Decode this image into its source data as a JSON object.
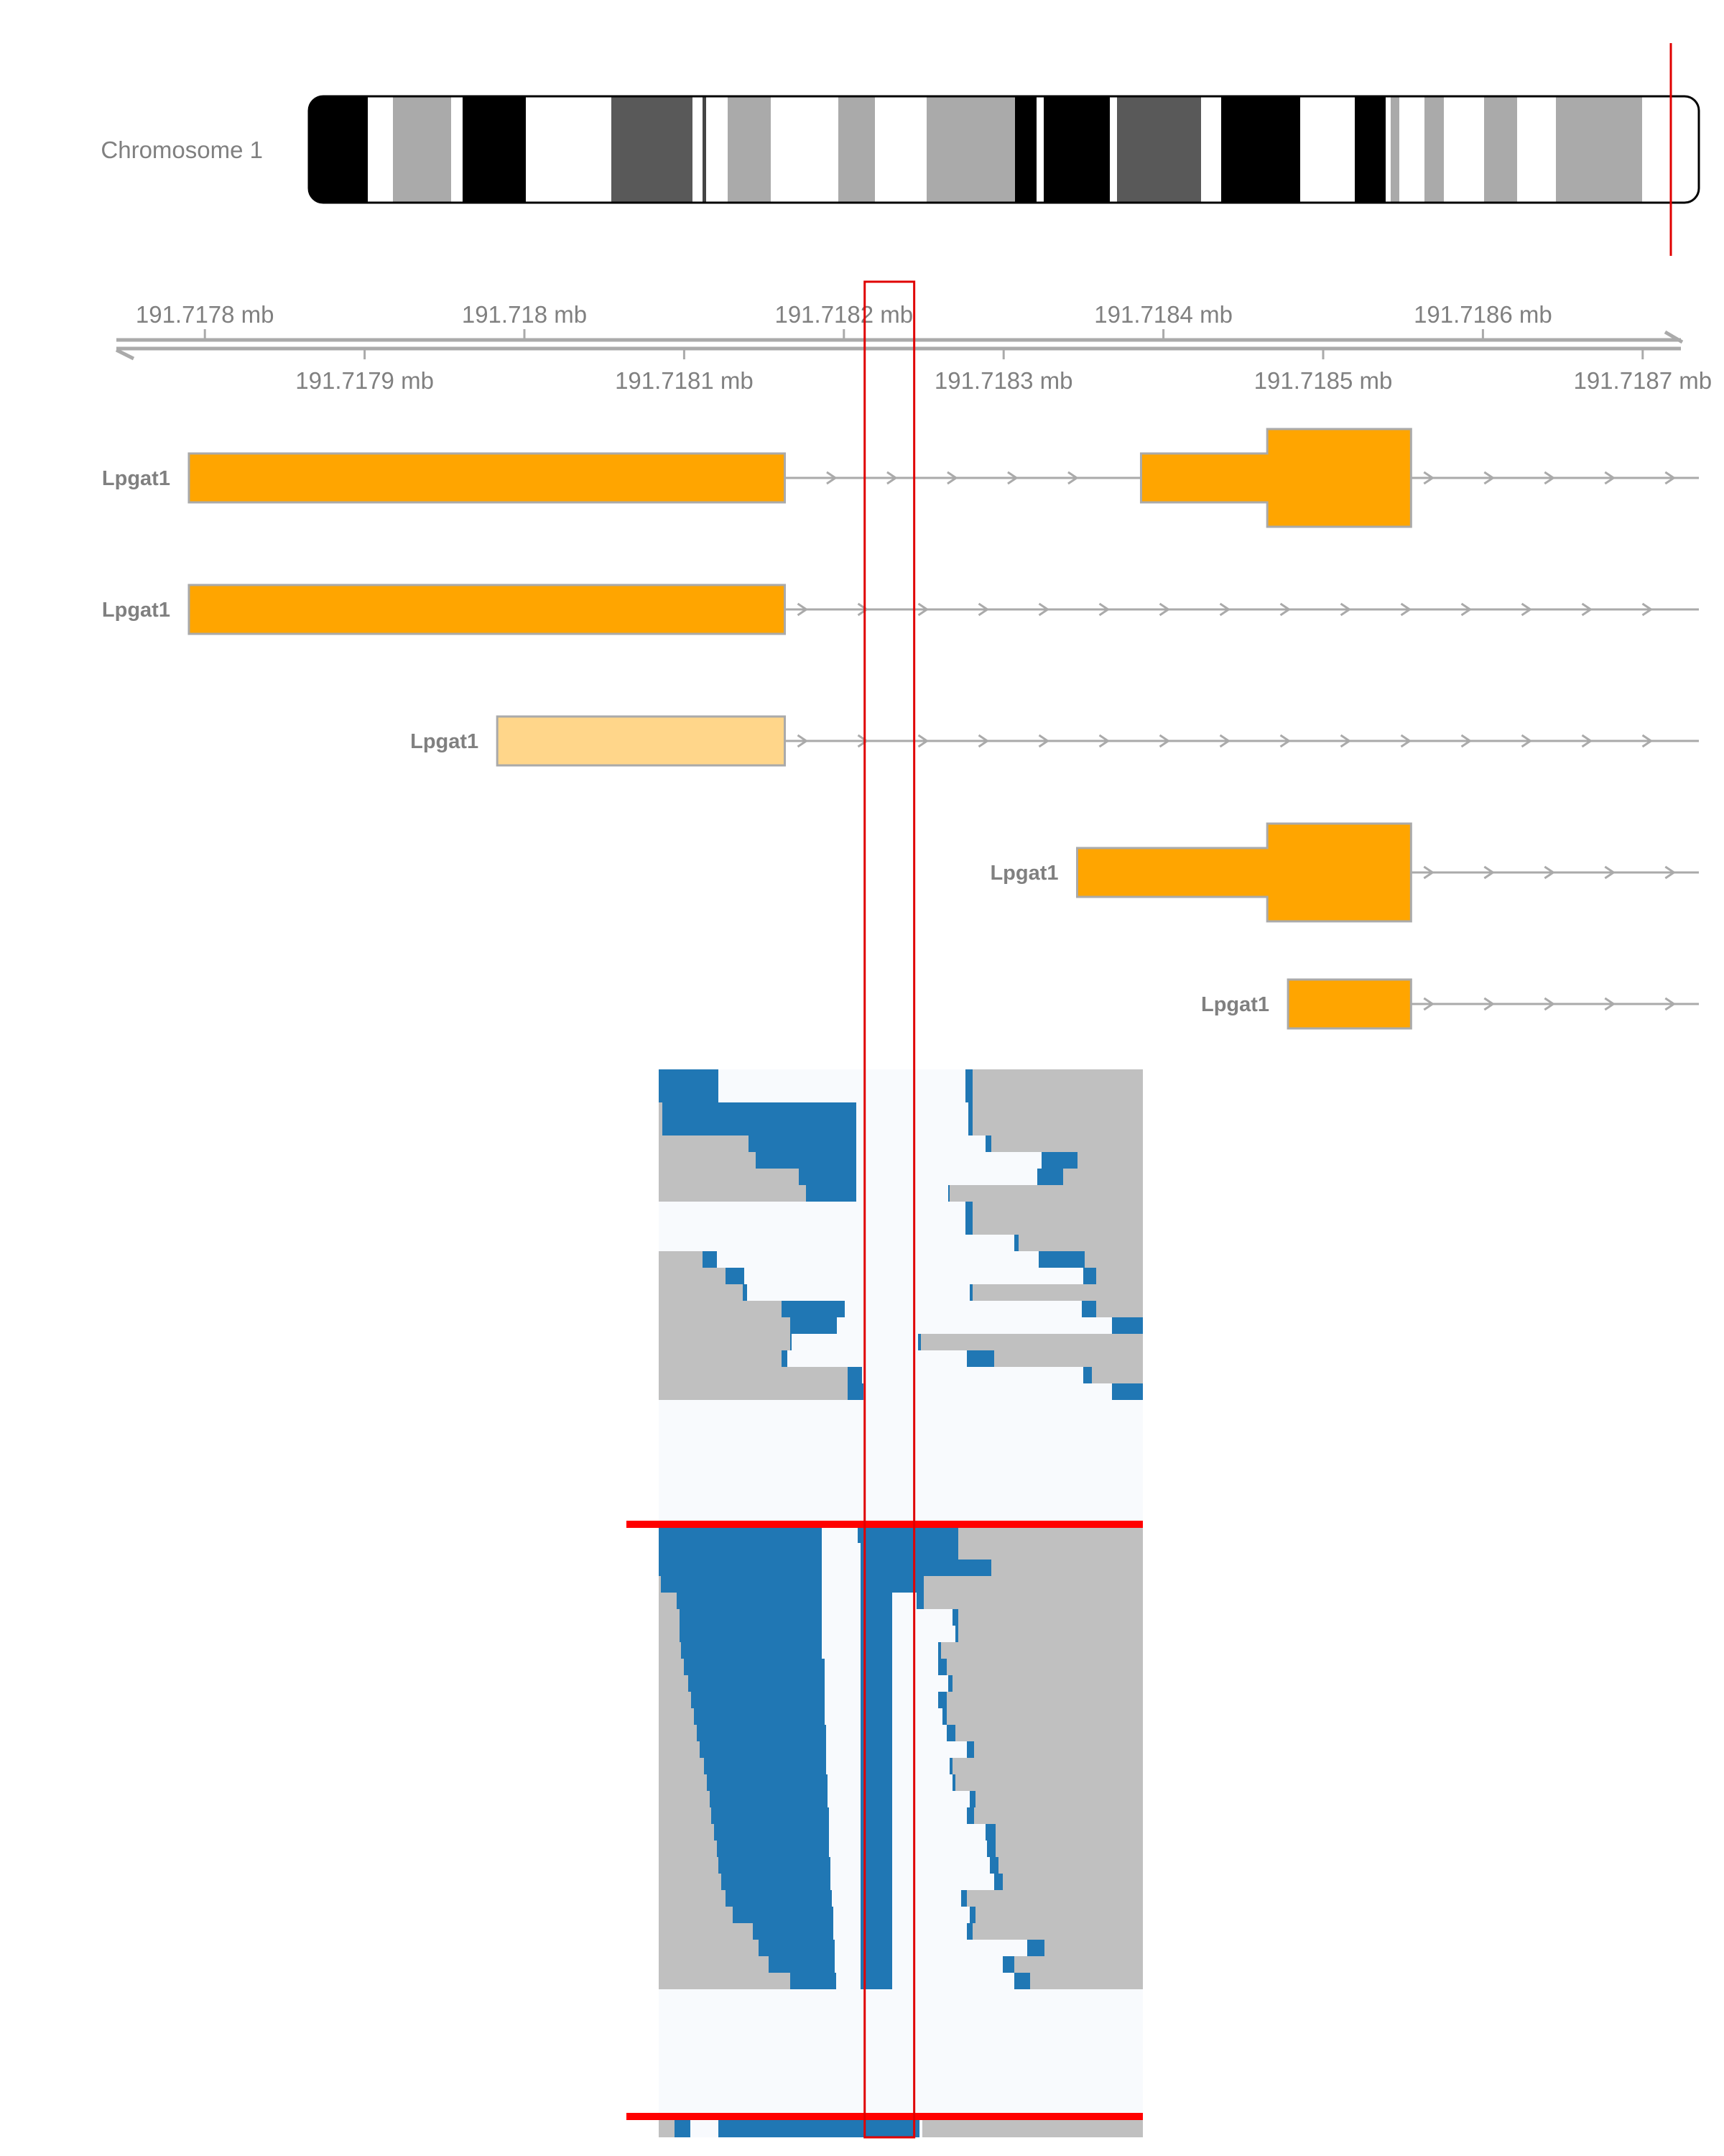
{
  "ideogram": {
    "label": "Chromosome 1",
    "bands": [
      {
        "color": "#000000"
      },
      {
        "color": "#ffffff"
      },
      {
        "color": "#aaaaaa"
      },
      {
        "color": "#ffffff"
      },
      {
        "color": "#000000"
      },
      {
        "color": "#ffffff"
      },
      {
        "color": "#595959"
      },
      {
        "color": "#ffffff"
      },
      {
        "color": "#454545"
      },
      {
        "color": "#ffffff"
      },
      {
        "color": "#aaaaaa"
      },
      {
        "color": "#ffffff"
      },
      {
        "color": "#aaaaaa"
      },
      {
        "color": "#ffffff"
      },
      {
        "color": "#aaaaaa"
      },
      {
        "color": "#000000"
      },
      {
        "color": "#ffffff"
      },
      {
        "color": "#000000"
      },
      {
        "color": "#ffffff"
      },
      {
        "color": "#595959"
      },
      {
        "color": "#ffffff"
      },
      {
        "color": "#000000"
      },
      {
        "color": "#ffffff"
      },
      {
        "color": "#000000"
      },
      {
        "color": "#ffffff"
      },
      {
        "color": "#aaaaaa"
      },
      {
        "color": "#ffffff"
      },
      {
        "color": "#aaaaaa"
      },
      {
        "color": "#ffffff"
      },
      {
        "color": "#aaaaaa"
      },
      {
        "color": "#ffffff"
      },
      {
        "color": "#aaaaaa"
      }
    ],
    "marker_color": "#e00000"
  },
  "axis": {
    "unit": "mb",
    "start": 191.71775,
    "end": 191.71875,
    "ticks_top": [
      {
        "value": 191.7178,
        "label": "191.7178 mb"
      },
      {
        "value": 191.718,
        "label": "191.718 mb"
      },
      {
        "value": 191.7182,
        "label": "191.7182 mb"
      },
      {
        "value": 191.7184,
        "label": "191.7184 mb"
      },
      {
        "value": 191.7186,
        "label": "191.7186 mb"
      }
    ],
    "ticks_bottom": [
      {
        "value": 191.7179,
        "label": "191.7179 mb"
      },
      {
        "value": 191.7181,
        "label": "191.7181 mb"
      },
      {
        "value": 191.7183,
        "label": "191.7183 mb"
      },
      {
        "value": 191.7185,
        "label": "191.7185 mb"
      },
      {
        "value": 191.7187,
        "label": "191.7187 mb"
      }
    ],
    "color": "#aaaaaa"
  },
  "transcripts": [
    {
      "name": "Lpgat1",
      "fill": "#ffa500",
      "exons": [
        {
          "start": 191.71779,
          "end": 191.718163,
          "type": "UTR"
        },
        {
          "start": 191.718386,
          "end": 191.718465,
          "type": "UTR"
        },
        {
          "start": 191.718465,
          "end": 191.718555,
          "type": "CDS"
        }
      ]
    },
    {
      "name": "Lpgat1",
      "fill": "#ffa500",
      "exons": [
        {
          "start": 191.71779,
          "end": 191.718163,
          "type": "UTR"
        }
      ]
    },
    {
      "name": "Lpgat1",
      "fill": "#ffd68a",
      "exons": [
        {
          "start": 191.717983,
          "end": 191.718163,
          "type": "UTR"
        }
      ]
    },
    {
      "name": "Lpgat1",
      "fill": "#ffa500",
      "exons": [
        {
          "start": 191.718346,
          "end": 191.718465,
          "type": "UTR"
        },
        {
          "start": 191.718465,
          "end": 191.718555,
          "type": "CDS"
        }
      ]
    },
    {
      "name": "Lpgat1",
      "fill": "#ffa500",
      "exons": [
        {
          "start": 191.718478,
          "end": 191.718555,
          "type": "UTR"
        }
      ]
    }
  ],
  "highlight": {
    "start": 191.718213,
    "end": 191.718244,
    "color": "#e00000"
  },
  "alignments": {
    "colors": {
      "read": "#c0c0c0",
      "clip": "#2077b4",
      "gap": "#f8fafd",
      "sep": "#ff0000"
    }
  }
}
